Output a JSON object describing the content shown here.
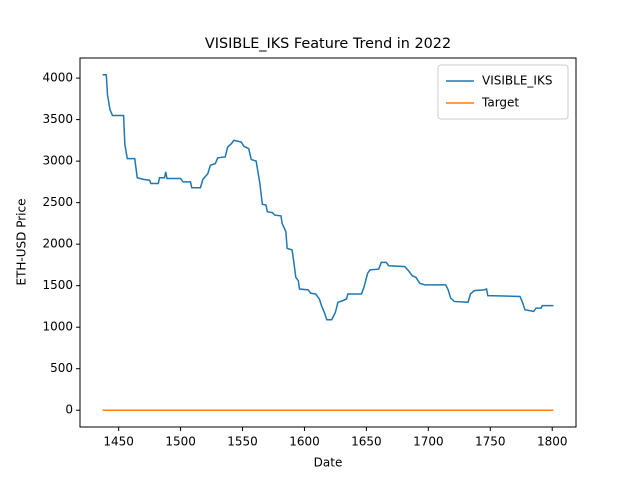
{
  "chart_data": {
    "type": "line",
    "title": "VISIBLE_IKS Feature Trend in 2022",
    "x_label": "Date",
    "y_label": "ETH-USD Price",
    "xlim": [
      1418.8,
      1819.2
    ],
    "xticks": [
      1450,
      1500,
      1550,
      1600,
      1650,
      1700,
      1750,
      1800
    ],
    "ylim": [
      -202,
      4242
    ],
    "yticks": [
      0,
      500,
      1000,
      1500,
      2000,
      2500,
      3000,
      3500,
      4000
    ],
    "legend": "upper right",
    "series": [
      {
        "name": "VISIBLE_IKS",
        "color": "#1f77b4",
        "x": [
          1437,
          1440,
          1441,
          1443,
          1445,
          1454,
          1455,
          1457,
          1463,
          1465,
          1470,
          1475,
          1476,
          1482,
          1483,
          1487,
          1488,
          1489,
          1500,
          1502,
          1508,
          1509,
          1516,
          1518,
          1522,
          1524,
          1528,
          1530,
          1536,
          1538,
          1541,
          1543,
          1549,
          1551,
          1555,
          1557,
          1561,
          1564,
          1566,
          1569,
          1570,
          1574,
          1576,
          1581,
          1582,
          1585,
          1586,
          1590,
          1591,
          1593,
          1595,
          1596,
          1603,
          1605,
          1609,
          1612,
          1614,
          1616,
          1618,
          1622,
          1625,
          1627,
          1631,
          1634,
          1635,
          1646,
          1648,
          1651,
          1653,
          1660,
          1662,
          1666,
          1668,
          1681,
          1684,
          1687,
          1690,
          1693,
          1697,
          1714,
          1716,
          1718,
          1721,
          1732,
          1734,
          1737,
          1745,
          1747,
          1748,
          1774,
          1776,
          1778,
          1785,
          1787,
          1791,
          1792,
          1801
        ],
        "values": [
          4040,
          4040,
          3800,
          3620,
          3550,
          3550,
          3200,
          3030,
          3030,
          2800,
          2780,
          2770,
          2730,
          2730,
          2800,
          2800,
          2870,
          2790,
          2790,
          2750,
          2750,
          2680,
          2680,
          2780,
          2850,
          2950,
          2970,
          3040,
          3050,
          3170,
          3210,
          3250,
          3230,
          3180,
          3150,
          3020,
          3000,
          2730,
          2480,
          2470,
          2390,
          2380,
          2350,
          2340,
          2250,
          2150,
          1950,
          1930,
          1830,
          1600,
          1560,
          1460,
          1450,
          1410,
          1400,
          1340,
          1250,
          1180,
          1090,
          1090,
          1180,
          1300,
          1320,
          1340,
          1400,
          1400,
          1480,
          1650,
          1690,
          1700,
          1780,
          1780,
          1740,
          1730,
          1680,
          1620,
          1600,
          1530,
          1510,
          1510,
          1450,
          1350,
          1310,
          1300,
          1400,
          1440,
          1450,
          1460,
          1380,
          1370,
          1300,
          1210,
          1190,
          1230,
          1230,
          1260,
          1260
        ]
      },
      {
        "name": "Target",
        "color": "#ff7f0e",
        "x": [
          1437,
          1801
        ],
        "values": [
          0,
          0
        ]
      }
    ]
  }
}
